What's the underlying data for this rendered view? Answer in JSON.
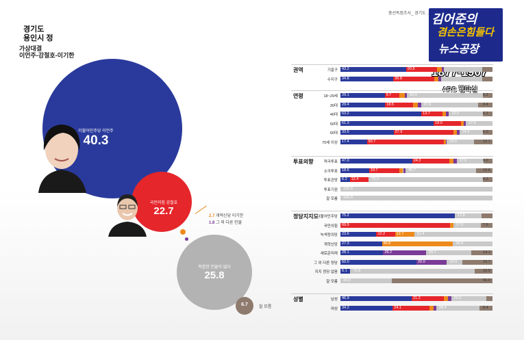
{
  "header": {
    "region1": "경기도",
    "region2": "용인시 정",
    "matchup_title": "가상대결",
    "matchup_names": "이언주-강철호-이기한"
  },
  "source_text": "충선독점조사_ 경기도 ...",
  "logo": {
    "line1": "김어준의",
    "line2": "겸손은힘들다",
    "line3": "뉴스공장",
    "phone": "1877-1907",
    "method": "ARS 웹마실"
  },
  "bubbles": [
    {
      "name": "더불어민주당 이언주",
      "value": "40.3"
    },
    {
      "name": "국민의힘 강철호",
      "value": "22.7"
    },
    {
      "name": "적합한 인물이 없다",
      "value": "25.8"
    },
    {
      "name": "잘 모름",
      "value": "6.7"
    }
  ],
  "legend_small": [
    {
      "value": "2.7",
      "name": "개혁신당 이기한"
    },
    {
      "value": "1.8",
      "name": "그 외 다른 인물"
    }
  ],
  "colors": {
    "dem": "#2a3a9c",
    "ppp": "#e5262b",
    "reform": "#ee8a1c",
    "other": "#7a3b98",
    "none": "#c9c9c9",
    "refuse": "#8e7b6e"
  },
  "chart_data": {
    "type": "bar",
    "stacked": true,
    "orientation": "horizontal",
    "series_names": [
      "더불어민주당 이언주",
      "국민의힘 강철호",
      "개혁신당 이기한",
      "그 외 다른 인물",
      "적합한 인물이 없다",
      "잘 모름"
    ],
    "groups": [
      {
        "title": "권역",
        "rows": [
          {
            "label": "기흥구",
            "values": [
              43.2,
              20.5,
              2.8,
              1.7,
              25.0,
              6.8
            ],
            "labels": [
              "43.2",
              "20.5",
              "",
              "",
              "",
              ""
            ]
          },
          {
            "label": "수지구",
            "values": [
              34.8,
              26.8,
              2.6,
              1.9,
              27.3,
              6.6
            ],
            "labels": [
              "34.8",
              "26.8",
              "",
              "",
              "",
              ""
            ]
          }
        ]
      },
      {
        "title": "연령",
        "rows": [
          {
            "label": "18~29세",
            "values": [
              29.1,
              9.7,
              3.5,
              1.5,
              50.0,
              6.2
            ],
            "labels": [
              "29.1",
              "9.7",
              "",
              "",
              "50.0",
              "6.2"
            ]
          },
          {
            "label": "30대",
            "values": [
              29.4,
              18.5,
              3.0,
              2.1,
              37.6,
              9.4
            ],
            "labels": [
              "29.4",
              "18.5",
              "",
              "",
              "37.6",
              "9.4"
            ]
          },
          {
            "label": "40대",
            "values": [
              53.2,
              13.7,
              2.6,
              1.9,
              22.5,
              6.1
            ],
            "labels": [
              "53.2",
              "13.7",
              "",
              "",
              "22.5",
              "6.1"
            ]
          },
          {
            "label": "50대",
            "values": [
              61.3,
              18.0,
              1.7,
              1.4,
              17.6,
              0.0
            ],
            "labels": [
              "61.3",
              "18.0",
              "",
              "",
              "17.6",
              ""
            ]
          },
          {
            "label": "60대",
            "values": [
              33.5,
              37.9,
              2.0,
              1.6,
              14.9,
              6.0
            ],
            "labels": [
              "33.5",
              "37.9",
              "",
              "",
              "14.9",
              "6.0"
            ]
          },
          {
            "label": "70세 이상",
            "values": [
              17.4,
              50.7,
              1.2,
              0.6,
              18.0,
              12.1
            ],
            "labels": [
              "17.4",
              "50.7",
              "",
              "",
              "18.0",
              "12.1"
            ]
          }
        ]
      },
      {
        "title": "투표의향",
        "rows": [
          {
            "label": "적극투표",
            "values": [
              47.0,
              24.2,
              3.0,
              1.9,
              17.5,
              6.0
            ],
            "labels": [
              "47.0",
              "24.2",
              "",
              "",
              "17.5",
              "6.0"
            ]
          },
          {
            "label": "소극투표",
            "values": [
              18.6,
              19.7,
              2.3,
              1.6,
              45.7,
              10.6
            ],
            "labels": [
              "18.6",
              "19.7",
              "",
              "",
              "45.7",
              "10.6"
            ]
          },
          {
            "label": "투표관망",
            "values": [
              6.2,
              12.4,
              0,
              0,
              75.3,
              6.2
            ],
            "labels": [
              "6.2",
              "12.4",
              "",
              "",
              "75.3",
              "6.2"
            ]
          },
          {
            "label": "투표기권",
            "values": [
              0,
              0,
              0,
              0,
              100.0,
              0
            ],
            "labels": [
              "",
              "",
              "",
              "",
              "100.0",
              ""
            ]
          },
          {
            "label": "잘 모름",
            "values": [
              0,
              0,
              0,
              0,
              100.0,
              0
            ],
            "labels": [
              "",
              "",
              "",
              "",
              "100.0",
              ""
            ]
          }
        ]
      },
      {
        "title": "정당지지도",
        "rows": [
          {
            "label": "더불어민주당",
            "values": [
              75.2,
              0,
              0,
              0,
              17.8,
              7.0
            ],
            "labels": [
              "75.2",
              "",
              "",
              "",
              "17.8",
              ""
            ]
          },
          {
            "label": "국민의힘",
            "values": [
              0,
              69.9,
              2.0,
              0,
              17.5,
              7.6
            ],
            "labels": [
              "",
              "69.9",
              "",
              "",
              "17.5",
              "7.6"
            ]
          },
          {
            "label": "녹색정의당",
            "values": [
              23.6,
              12.2,
              12.7,
              0,
              51.4,
              0
            ],
            "labels": [
              "23.6",
              "12.2",
              "12.7",
              "",
              "51.4",
              ""
            ]
          },
          {
            "label": "개혁신당",
            "values": [
              27.3,
              0,
              46.8,
              0,
              26.0,
              0
            ],
            "labels": [
              "27.3",
              "",
              "46.8",
              "",
              "26.0",
              ""
            ]
          },
          {
            "label": "새로운미래",
            "values": [
              28.1,
              0,
              0,
              28.2,
              29.7,
              14.1
            ],
            "labels": [
              "28.1",
              "",
              "",
              "28.2",
              "29.7",
              "14.1"
            ]
          },
          {
            "label": "그 외 다른 정당",
            "values": [
              50.0,
              0,
              0,
              20.0,
              10.3,
              19.7
            ],
            "labels": [
              "50.0",
              "",
              "",
              "20.0",
              "10.3",
              "19.7"
            ]
          },
          {
            "label": "지지 정당 없음",
            "values": [
              6.1,
              0,
              0,
              0,
              76.8,
              10.9
            ],
            "labels": [
              "6.1",
              "",
              "",
              "",
              "76.8",
              "10.9"
            ]
          },
          {
            "label": "잘 모름",
            "values": [
              0,
              0,
              0,
              0,
              34.0,
              66.0
            ],
            "labels": [
              "",
              "",
              "",
              "",
              "34.0",
              "66.0"
            ]
          }
        ]
      },
      {
        "title": "성별",
        "rows": [
          {
            "label": "남성",
            "values": [
              46.9,
              21.2,
              2.8,
              1.9,
              23.0,
              4.2
            ],
            "labels": [
              "46.9",
              "21.2",
              "",
              "",
              "23.0",
              ""
            ]
          },
          {
            "label": "여성",
            "values": [
              34.2,
              24.1,
              2.6,
              1.7,
              28.4,
              8.4
            ],
            "labels": [
              "34.2",
              "24.1",
              "",
              "",
              "28.4",
              "8.4"
            ]
          }
        ]
      }
    ]
  }
}
